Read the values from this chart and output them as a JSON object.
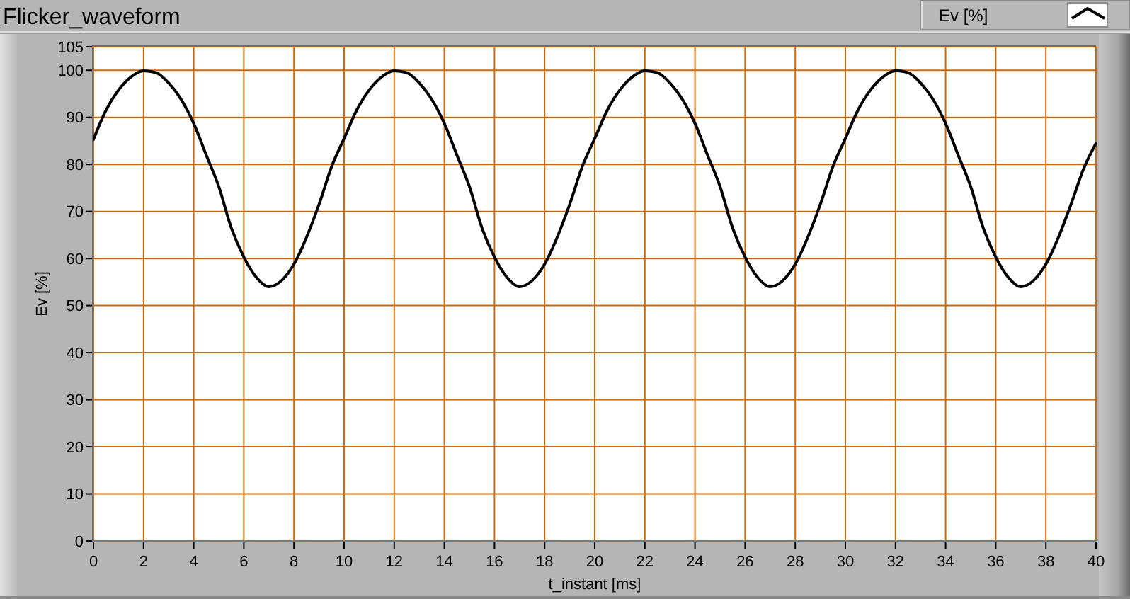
{
  "chart_data": {
    "type": "line",
    "title": "Flicker_waveform",
    "xlabel": "t_instant [ms]",
    "ylabel": "Ev [%]",
    "x": [
      0,
      0.5,
      1,
      1.5,
      2,
      2.5,
      3,
      3.5,
      4,
      4.5,
      5,
      5.5,
      6,
      6.5,
      7,
      7.5,
      8,
      8.5,
      9,
      9.5,
      10,
      10.5,
      11,
      11.5,
      12,
      12.5,
      13,
      13.5,
      14,
      14.5,
      15,
      15.5,
      16,
      16.5,
      17,
      17.5,
      18,
      18.5,
      19,
      19.5,
      20,
      20.5,
      21,
      21.5,
      22,
      22.5,
      23,
      23.5,
      24,
      24.5,
      25,
      25.5,
      26,
      26.5,
      27,
      27.5,
      28,
      28.5,
      29,
      29.5,
      30,
      30.5,
      31,
      31.5,
      32,
      32.5,
      33,
      33.5,
      34,
      34.5,
      35,
      35.5,
      36,
      36.5,
      37,
      37.5,
      38,
      38.5,
      39,
      39.5,
      40
    ],
    "series": [
      {
        "name": "Ev [%]",
        "color": "#000000",
        "values": [
          85.3,
          91.5,
          95.8,
          98.6,
          99.9,
          99.5,
          97.3,
          93.8,
          88.7,
          82,
          75.3,
          66.5,
          60.3,
          56,
          54,
          55.3,
          58.8,
          64.5,
          71.5,
          79.5,
          85.5,
          91.5,
          95.8,
          98.6,
          99.9,
          99.5,
          97.3,
          93.8,
          88.7,
          82,
          75.3,
          66.5,
          60.3,
          56,
          54,
          55.3,
          58.8,
          64.5,
          71.5,
          79.5,
          85.5,
          91.5,
          95.8,
          98.6,
          99.9,
          99.5,
          97.3,
          93.8,
          88.7,
          82,
          75.3,
          66.5,
          60.3,
          56,
          54,
          55.3,
          58.8,
          64.5,
          71.5,
          79.5,
          85.5,
          91.5,
          95.8,
          98.6,
          99.9,
          99.5,
          97.3,
          93.8,
          88.7,
          82,
          75.3,
          66.5,
          60.3,
          56,
          54,
          55.3,
          58.8,
          64.5,
          71.5,
          79,
          84.5
        ]
      }
    ],
    "xlim": [
      0,
      40
    ],
    "ylim": [
      0,
      105
    ],
    "xticks": [
      0,
      2,
      4,
      6,
      8,
      10,
      12,
      14,
      16,
      18,
      20,
      22,
      24,
      26,
      28,
      30,
      32,
      34,
      36,
      38,
      40
    ],
    "yticks": [
      0,
      10,
      20,
      30,
      40,
      50,
      60,
      70,
      80,
      90,
      100,
      105
    ],
    "grid": true,
    "legend": "top right"
  }
}
